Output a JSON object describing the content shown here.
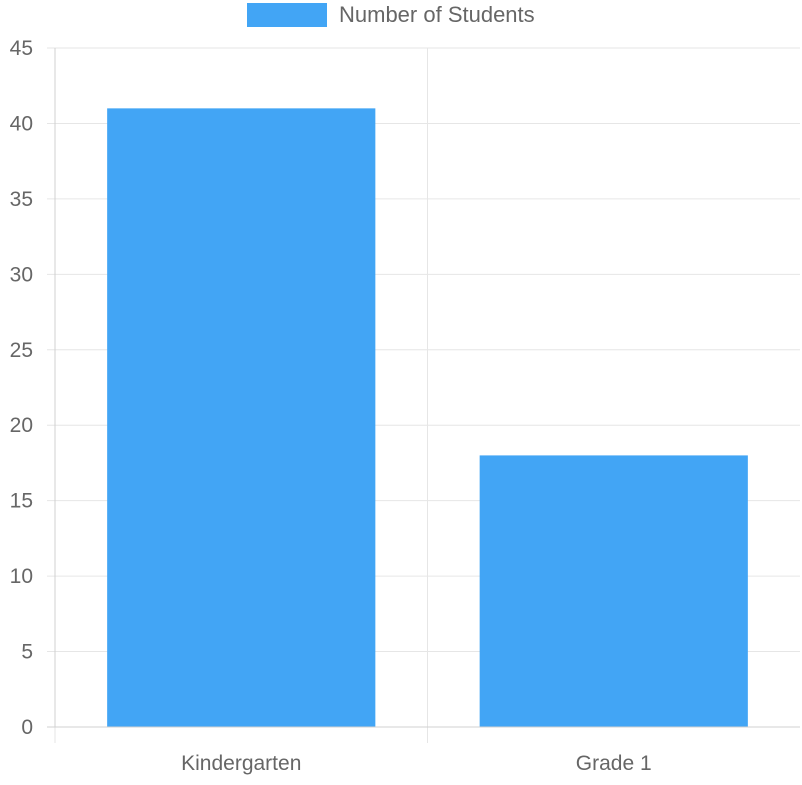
{
  "chart_data": {
    "type": "bar",
    "categories": [
      "Kindergarten",
      "Grade 1"
    ],
    "series": [
      {
        "name": "Number of Students",
        "values": [
          41,
          18
        ],
        "color": "#42a5f5"
      }
    ],
    "ylim": [
      0,
      45
    ],
    "yticks": [
      0,
      5,
      10,
      15,
      20,
      25,
      30,
      35,
      40,
      45
    ],
    "grid": true,
    "legend_position": "top-center",
    "colors": {
      "grid": "#e6e6e6",
      "axis_text": "#666666"
    }
  }
}
